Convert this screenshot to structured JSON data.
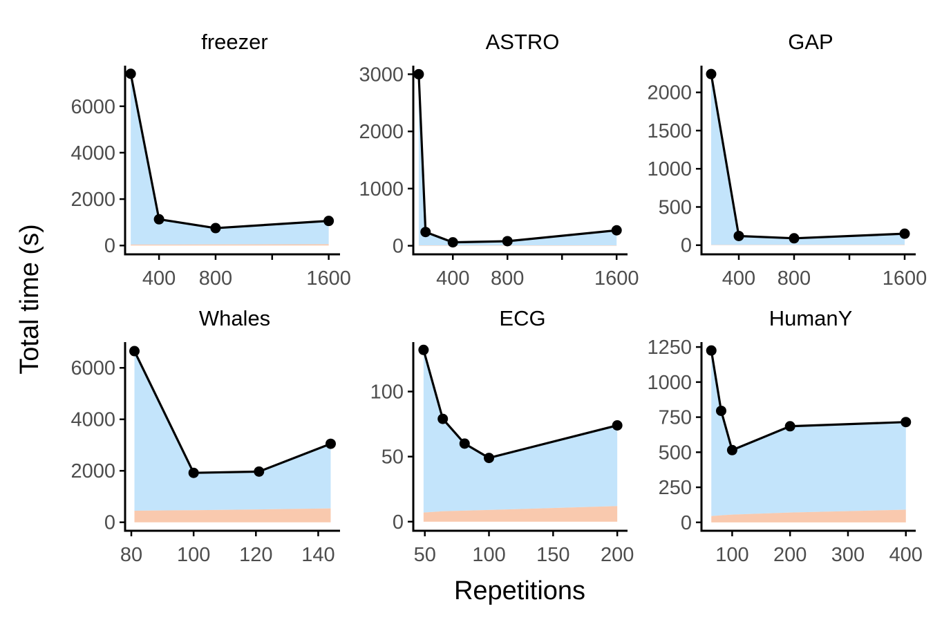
{
  "figure": {
    "xlabel": "Repetitions",
    "ylabel": "Total time (s)"
  },
  "colors": {
    "area_upper": "#c3e4fb",
    "area_lower": "#f9c9ae",
    "line": "#000000",
    "axis": "#000000",
    "tick_text": "#4d4d4d"
  },
  "chart_data": [
    {
      "type": "area",
      "title": "freezer",
      "x": [
        200,
        400,
        800,
        1600
      ],
      "total": [
        7400,
        1130,
        750,
        1060
      ],
      "lower": [
        40,
        40,
        45,
        55
      ],
      "xlim": [
        160,
        1680
      ],
      "ylim": [
        -380,
        7750
      ],
      "xticks": [
        400,
        800,
        1600
      ],
      "xticks_minor": [
        1200
      ],
      "yticks": [
        0,
        2000,
        4000,
        6000
      ]
    },
    {
      "type": "area",
      "title": "ASTRO",
      "x": [
        150,
        200,
        400,
        800,
        1600
      ],
      "total": [
        3000,
        240,
        60,
        80,
        270
      ],
      "lower": [
        5,
        5,
        5,
        5,
        5
      ],
      "xlim": [
        110,
        1680
      ],
      "ylim": [
        -150,
        3150
      ],
      "xticks": [
        400,
        800,
        1600
      ],
      "xticks_minor": [
        1200
      ],
      "yticks": [
        0,
        1000,
        2000,
        3000
      ]
    },
    {
      "type": "area",
      "title": "GAP",
      "x": [
        200,
        400,
        800,
        1600
      ],
      "total": [
        2240,
        120,
        90,
        150
      ],
      "lower": [
        3,
        3,
        3,
        4
      ],
      "xlim": [
        130,
        1680
      ],
      "ylim": [
        -120,
        2350
      ],
      "xticks": [
        400,
        800,
        1600
      ],
      "xticks_minor": [
        1200
      ],
      "yticks": [
        0,
        500,
        1000,
        1500,
        2000
      ]
    },
    {
      "type": "area",
      "title": "Whales",
      "x": [
        81,
        100,
        121,
        144
      ],
      "total": [
        6650,
        1920,
        1970,
        3050
      ],
      "lower": [
        450,
        470,
        500,
        540
      ],
      "xlim": [
        78,
        147
      ],
      "ylim": [
        -330,
        7000
      ],
      "xticks": [
        80,
        100,
        120,
        140
      ],
      "yticks": [
        0,
        2000,
        4000,
        6000
      ]
    },
    {
      "type": "area",
      "title": "ECG",
      "x": [
        49,
        64,
        81,
        100,
        200
      ],
      "total": [
        132,
        79,
        60,
        49,
        74
      ],
      "lower": [
        7,
        8,
        8.5,
        9,
        12
      ],
      "xlim": [
        41,
        208
      ],
      "ylim": [
        -7,
        138
      ],
      "xticks": [
        50,
        100,
        150,
        200
      ],
      "yticks": [
        0,
        50,
        100
      ]
    },
    {
      "type": "area",
      "title": "HumanY",
      "x": [
        64,
        81,
        100,
        200,
        400
      ],
      "total": [
        1225,
        795,
        515,
        685,
        715
      ],
      "lower": [
        45,
        50,
        55,
        70,
        90
      ],
      "xlim": [
        47,
        417
      ],
      "ylim": [
        -60,
        1285
      ],
      "xticks": [
        100,
        200,
        300,
        400
      ],
      "yticks": [
        0,
        250,
        500,
        750,
        1000,
        1250
      ]
    }
  ]
}
